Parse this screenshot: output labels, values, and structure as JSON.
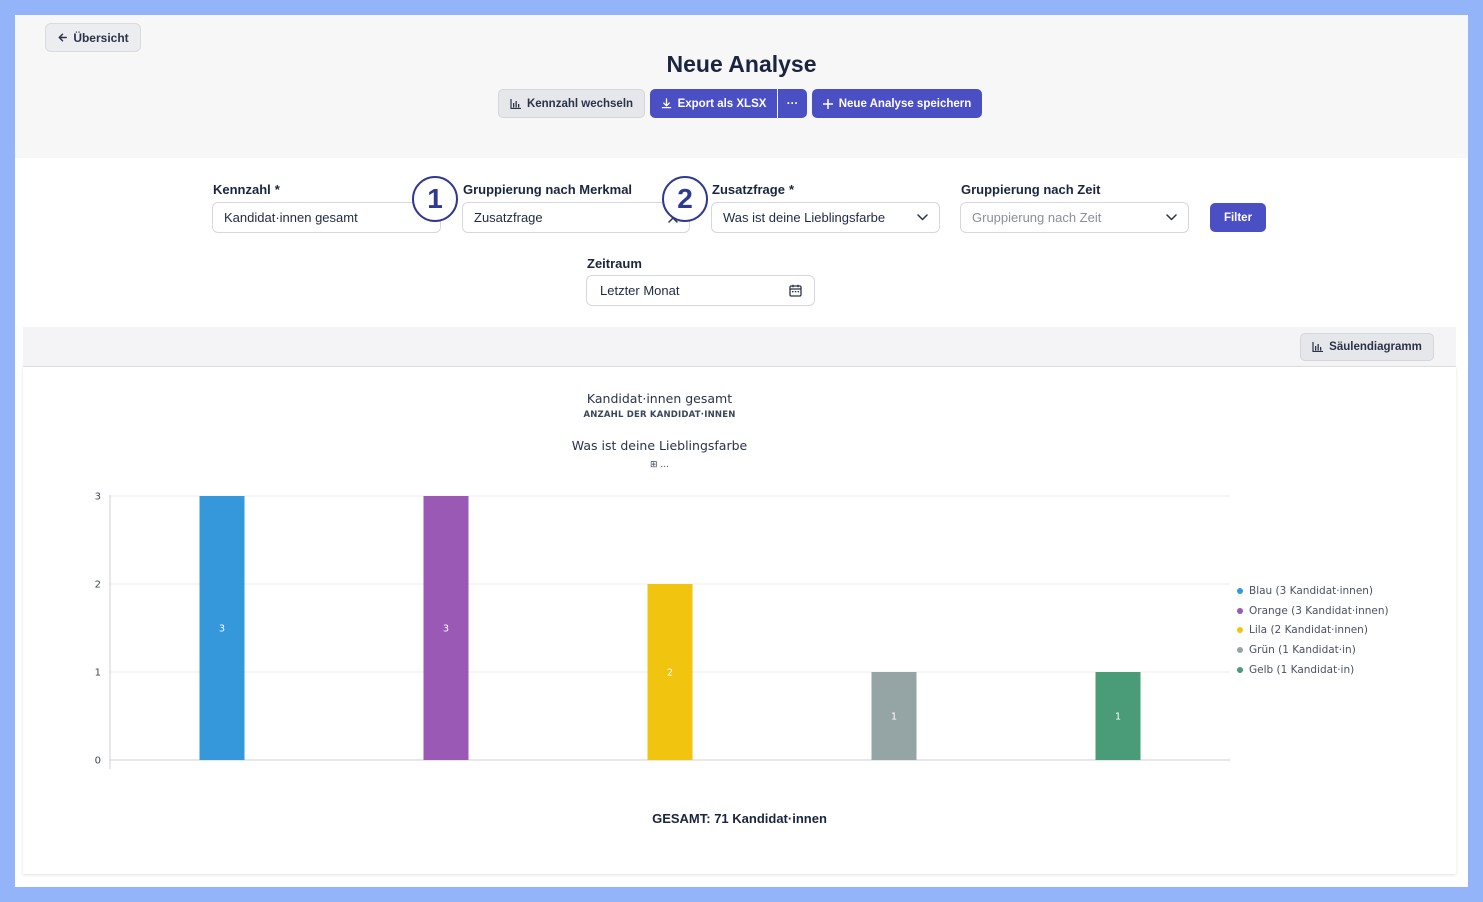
{
  "header": {
    "back_label": "Übersicht",
    "title": "Neue Analyse",
    "switch_metric_label": "Kennzahl wechseln",
    "export_label": "Export als XLSX",
    "more_label": "···",
    "save_label": "Neue Analyse speichern"
  },
  "filters": {
    "metric": {
      "label": "Kennzahl",
      "required": "*",
      "value": "Kandidat·innen gesamt"
    },
    "grouping_feature": {
      "label": "Gruppierung nach Merkmal",
      "value": "Zusatzfrage"
    },
    "extra_question": {
      "label": "Zusatzfrage",
      "required": "*",
      "value": "Was ist deine Lieblingsfarbe"
    },
    "grouping_time": {
      "label": "Gruppierung nach Zeit",
      "placeholder": "Gruppierung nach Zeit"
    },
    "filter_button": "Filter",
    "period": {
      "label": "Zeitraum",
      "value": "Letzter Monat"
    }
  },
  "markers": [
    "1",
    "2"
  ],
  "chart_toolbar": {
    "chart_type_label": "Säulendiagramm"
  },
  "chart_data": {
    "type": "bar",
    "title": "Kandidat·innen gesamt",
    "subtitle": "ANZAHL DER KANDIDAT·INNEN",
    "group_title": "Was ist deine Lieblingsfarbe",
    "group_subtitle": "⊞ ...",
    "categories": [
      "Blau",
      "Orange",
      "Lila",
      "Grün",
      "Gelb"
    ],
    "values": [
      3,
      3,
      2,
      1,
      1
    ],
    "colors": [
      "#3498db",
      "#9b59b6",
      "#f1c40f",
      "#95a5a6",
      "#4a9b77"
    ],
    "y_ticks": [
      "0",
      "1",
      "2",
      "3"
    ],
    "ylim": [
      0,
      3
    ],
    "grid": true,
    "legend_position": "right",
    "legend": [
      "Blau (3 Kandidat·innen)",
      "Orange (3 Kandidat·innen)",
      "Lila (2 Kandidat·innen)",
      "Grün (1 Kandidat·in)",
      "Gelb (1 Kandidat·in)"
    ]
  },
  "total_label": "GESAMT: 71 Kandidat·innen"
}
